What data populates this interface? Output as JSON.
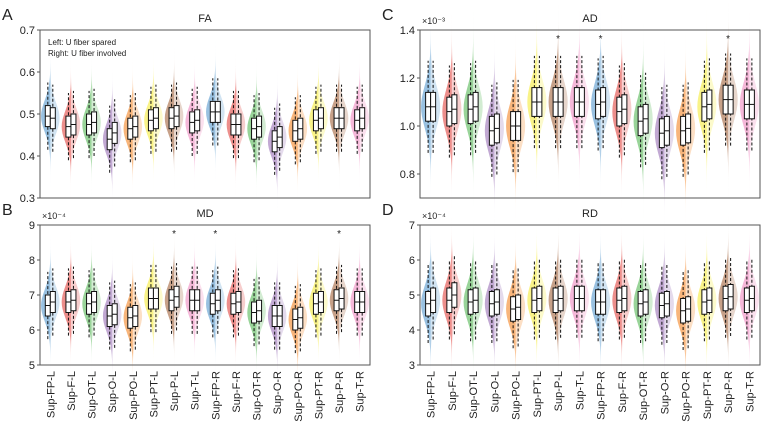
{
  "chart_data": [
    {
      "panel": "A",
      "type": "violin",
      "title": "FA",
      "ylim": [
        0.3,
        0.7
      ],
      "yticks": [
        "0.3",
        "0.4",
        "0.5",
        "0.6",
        "0.7"
      ],
      "tickvals": [
        0.3,
        0.4,
        0.5,
        0.6,
        0.7
      ],
      "multiplier": "",
      "iqr": 0.025,
      "legend": [
        "Left: U fiber spared",
        "Right: U fiber involved"
      ],
      "medians": [
        [
          0.495,
          0.49
        ],
        [
          0.47,
          0.475
        ],
        [
          0.475,
          0.48
        ],
        [
          0.44,
          0.455
        ],
        [
          0.465,
          0.47
        ],
        [
          0.485,
          0.49
        ],
        [
          0.49,
          0.495
        ],
        [
          0.48,
          0.485
        ],
        [
          0.505,
          0.505
        ],
        [
          0.475,
          0.475
        ],
        [
          0.465,
          0.47
        ],
        [
          0.435,
          0.445
        ],
        [
          0.46,
          0.465
        ],
        [
          0.485,
          0.49
        ],
        [
          0.49,
          0.49
        ],
        [
          0.485,
          0.49
        ]
      ],
      "stars": []
    },
    {
      "panel": "B",
      "type": "violin",
      "title": "MD",
      "ylim": [
        5,
        9
      ],
      "yticks": [
        "5",
        "6",
        "7",
        "8",
        "9"
      ],
      "tickvals": [
        5,
        6,
        7,
        8,
        9
      ],
      "multiplier": "×10⁻⁴",
      "iqr": 0.3,
      "medians": [
        [
          6.7,
          6.8
        ],
        [
          6.8,
          6.85
        ],
        [
          6.75,
          6.8
        ],
        [
          6.4,
          6.45
        ],
        [
          6.35,
          6.4
        ],
        [
          6.9,
          6.9
        ],
        [
          6.85,
          6.95
        ],
        [
          6.85,
          6.85
        ],
        [
          6.75,
          6.85
        ],
        [
          6.75,
          6.8
        ],
        [
          6.5,
          6.55
        ],
        [
          6.4,
          6.4
        ],
        [
          6.3,
          6.35
        ],
        [
          6.75,
          6.8
        ],
        [
          6.85,
          6.9
        ],
        [
          6.8,
          6.8
        ]
      ],
      "stars": [
        6,
        8,
        14
      ],
      "star_label": "*"
    },
    {
      "panel": "C",
      "type": "violin",
      "title": "AD",
      "ylim": [
        0.7,
        1.4
      ],
      "yticks": [
        "0.8",
        "1.0",
        "1.2",
        "1.4"
      ],
      "tickvals": [
        0.8,
        1.0,
        1.2,
        1.4
      ],
      "multiplier": "×10⁻³",
      "iqr": 0.06,
      "medians": [
        [
          1.08,
          1.08
        ],
        [
          1.06,
          1.07
        ],
        [
          1.07,
          1.08
        ],
        [
          0.98,
          0.99
        ],
        [
          1.0,
          1.0
        ],
        [
          1.1,
          1.1
        ],
        [
          1.1,
          1.1
        ],
        [
          1.1,
          1.1
        ],
        [
          1.09,
          1.1
        ],
        [
          1.06,
          1.07
        ],
        [
          1.02,
          1.03
        ],
        [
          0.97,
          0.98
        ],
        [
          0.98,
          0.99
        ],
        [
          1.08,
          1.09
        ],
        [
          1.11,
          1.11
        ],
        [
          1.09,
          1.09
        ]
      ],
      "stars": [
        6,
        8,
        14
      ],
      "star_label": "*"
    },
    {
      "panel": "D",
      "type": "violin",
      "title": "RD",
      "ylim": [
        3,
        7
      ],
      "yticks": [
        "3",
        "4",
        "5",
        "6",
        "7"
      ],
      "tickvals": [
        3,
        4,
        5,
        6,
        7
      ],
      "multiplier": "×10⁻⁴",
      "iqr": 0.35,
      "medians": [
        [
          4.75,
          4.85
        ],
        [
          4.85,
          5.0
        ],
        [
          4.8,
          4.85
        ],
        [
          4.75,
          4.8
        ],
        [
          4.6,
          4.65
        ],
        [
          4.85,
          4.9
        ],
        [
          4.85,
          4.9
        ],
        [
          4.9,
          4.9
        ],
        [
          4.8,
          4.8
        ],
        [
          4.85,
          4.9
        ],
        [
          4.75,
          4.8
        ],
        [
          4.7,
          4.75
        ],
        [
          4.55,
          4.6
        ],
        [
          4.8,
          4.85
        ],
        [
          4.9,
          4.95
        ],
        [
          4.85,
          4.9
        ]
      ],
      "stars": []
    }
  ],
  "categories": [
    "Sup-FP-L",
    "Sup-F-L",
    "Sup-OT-L",
    "Sup-O-L",
    "Sup-PO-L",
    "Sup-PT-L",
    "Sup-P-L",
    "Sup-T-L",
    "Sup-FP-R",
    "Sup-F-R",
    "Sup-OT-R",
    "Sup-O-R",
    "Sup-PO-R",
    "Sup-PT-R",
    "Sup-P-R",
    "Sup-T-R"
  ],
  "colors": [
    "#7fb1d9",
    "#e8736f",
    "#7fc97f",
    "#b394c8",
    "#f6a25a",
    "#f7f06a",
    "#b98a6c",
    "#f3a6cf"
  ]
}
